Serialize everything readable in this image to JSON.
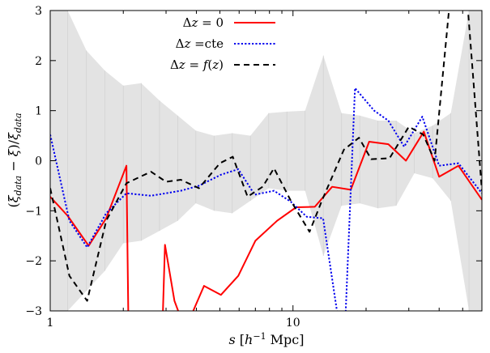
{
  "chart_data": {
    "type": "line",
    "xlabel": "s [h⁻¹ Mpc]",
    "ylabel": "(ξ_data − ξ)/ξ_data",
    "xscale": "log",
    "xlim": [
      1,
      60
    ],
    "ylim": [
      -3,
      3
    ],
    "xticks": [
      1,
      10
    ],
    "xtick_labels": [
      "1",
      "10"
    ],
    "yticks": [
      -3,
      -2,
      -1,
      0,
      1,
      2,
      3
    ],
    "ytick_labels": [
      "−3",
      "−2",
      "−1",
      "0",
      "1",
      "2",
      "3"
    ],
    "legend_position": "top-center",
    "band": {
      "color": "#e3e3e3",
      "x": [
        1,
        1.18,
        1.41,
        1.68,
        2.0,
        2.37,
        2.82,
        3.35,
        3.98,
        4.73,
        5.62,
        6.68,
        7.94,
        9.44,
        11.22,
        13.34,
        15.85,
        18.84,
        22.39,
        26.61,
        31.62,
        37.58,
        44.67,
        53.09,
        60
      ],
      "lower": [
        -3.0,
        -3.0,
        -2.6,
        -2.2,
        -1.65,
        -1.6,
        -1.4,
        -1.2,
        -0.85,
        -1.0,
        -1.05,
        -0.8,
        -0.55,
        -0.6,
        -0.6,
        -1.9,
        -0.9,
        -0.85,
        -0.95,
        -0.9,
        -0.25,
        -0.35,
        -0.8,
        -3.0,
        -3.0
      ],
      "upper": [
        3.0,
        3.0,
        2.2,
        1.8,
        1.5,
        1.55,
        1.2,
        0.9,
        0.6,
        0.5,
        0.55,
        0.5,
        0.95,
        0.98,
        1.0,
        2.1,
        0.95,
        0.9,
        0.8,
        0.8,
        0.55,
        0.7,
        0.95,
        3.0,
        3.0
      ]
    },
    "series": [
      {
        "name": "Δz = 0",
        "color": "#ff0000",
        "style": "solid",
        "points": [
          [
            1,
            -0.72
          ],
          [
            1.18,
            -1.1
          ],
          [
            1.44,
            -1.7
          ],
          [
            1.7,
            -1.15
          ],
          [
            2.06,
            -0.1
          ],
          [
            2.1,
            -3.3
          ],
          [
            null,
            null
          ],
          [
            2.9,
            -3.3
          ],
          [
            2.97,
            -1.68
          ],
          [
            3.25,
            -2.8
          ],
          [
            3.55,
            -3.3
          ],
          [
            null,
            null
          ],
          [
            3.65,
            -3.3
          ],
          [
            4.3,
            -2.5
          ],
          [
            5.05,
            -2.68
          ],
          [
            5.95,
            -2.3
          ],
          [
            7.0,
            -1.6
          ],
          [
            8.6,
            -1.2
          ],
          [
            10.3,
            -0.93
          ],
          [
            12.3,
            -0.92
          ],
          [
            14.5,
            -0.52
          ],
          [
            17.3,
            -0.58
          ],
          [
            20.6,
            0.38
          ],
          [
            24.7,
            0.33
          ],
          [
            29.2,
            0.0
          ],
          [
            34.6,
            0.58
          ],
          [
            40.0,
            -0.32
          ],
          [
            48.0,
            -0.1
          ],
          [
            60,
            -0.78
          ]
        ]
      },
      {
        "name": "Δz =cte",
        "color": "#0000ee",
        "style": "dotted",
        "points": [
          [
            1,
            0.52
          ],
          [
            1.2,
            -1.2
          ],
          [
            1.42,
            -1.73
          ],
          [
            1.7,
            -1.05
          ],
          [
            2.06,
            -0.65
          ],
          [
            2.6,
            -0.7
          ],
          [
            3.45,
            -0.6
          ],
          [
            4.1,
            -0.5
          ],
          [
            5.05,
            -0.28
          ],
          [
            5.95,
            -0.17
          ],
          [
            6.95,
            -0.68
          ],
          [
            8.35,
            -0.6
          ],
          [
            9.8,
            -0.82
          ],
          [
            11.4,
            -1.12
          ],
          [
            13.3,
            -1.15
          ],
          [
            15.5,
            -3.3
          ],
          [
            null,
            null
          ],
          [
            16.4,
            -3.3
          ],
          [
            18.0,
            1.45
          ],
          [
            21.6,
            1.0
          ],
          [
            24.7,
            0.8
          ],
          [
            28.7,
            0.28
          ],
          [
            34.1,
            0.88
          ],
          [
            40.0,
            -0.1
          ],
          [
            48.0,
            -0.05
          ],
          [
            60,
            -0.65
          ]
        ]
      },
      {
        "name": "Δz = f(z)",
        "color": "#000000",
        "style": "dashed",
        "points": [
          [
            1,
            -0.55
          ],
          [
            1.2,
            -2.3
          ],
          [
            1.42,
            -2.8
          ],
          [
            1.7,
            -1.2
          ],
          [
            2.06,
            -0.45
          ],
          [
            2.6,
            -0.22
          ],
          [
            3.0,
            -0.42
          ],
          [
            3.45,
            -0.38
          ],
          [
            4.1,
            -0.55
          ],
          [
            5.0,
            -0.05
          ],
          [
            5.65,
            0.08
          ],
          [
            6.5,
            -0.72
          ],
          [
            7.5,
            -0.52
          ],
          [
            8.35,
            -0.15
          ],
          [
            9.8,
            -0.8
          ],
          [
            11.7,
            -1.42
          ],
          [
            13.2,
            -0.78
          ],
          [
            16.2,
            0.22
          ],
          [
            18.7,
            0.46
          ],
          [
            21.0,
            0.03
          ],
          [
            25.0,
            0.05
          ],
          [
            30.0,
            0.68
          ],
          [
            34.4,
            0.52
          ],
          [
            38.3,
            0.0
          ],
          [
            44.5,
            3.3
          ],
          [
            null,
            null
          ],
          [
            52.0,
            3.3
          ],
          [
            60,
            -0.6
          ]
        ]
      }
    ]
  }
}
